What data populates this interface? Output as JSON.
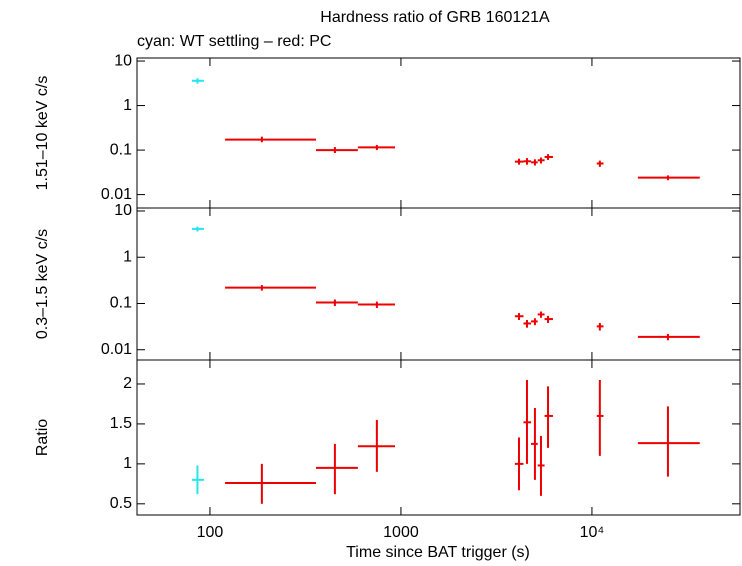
{
  "chart_data": {
    "type": "scatter",
    "title": "Hardness ratio of GRB 160121A",
    "subtitle": "cyan: WT settling – red: PC",
    "xlabel": "Time since BAT trigger (s)",
    "xlog": true,
    "xlim": [
      41.5,
      59600
    ],
    "xticks": [
      100,
      1000,
      {
        "value": 10000,
        "label": "10⁴"
      }
    ],
    "panels": [
      {
        "ylabel": "1.51–10 keV c/s",
        "ylog": true,
        "ylim": [
          0.005,
          11.7
        ],
        "yticks": [
          0.01,
          0.1,
          1,
          10
        ],
        "series": [
          {
            "color": "#22e6f0",
            "x": [
              86
            ],
            "xlow": [
              80.5
            ],
            "xhigh": [
              93
            ],
            "values": [
              3.6
            ],
            "ylow": [
              3.1
            ],
            "yhigh": [
              4.1
            ]
          },
          {
            "color": "#ee0000",
            "x": [
              187,
              451,
              748,
              4150,
              4570,
              5030,
              5410,
              5890,
              11000,
              25000
            ],
            "xlow": [
              120,
              359,
              595,
              3950,
              4380,
              4800,
              5200,
              5650,
              10600,
              17400
            ],
            "xhigh": [
              359,
              595,
              931,
              4380,
              4800,
              5200,
              5650,
              6250,
              11500,
              36700
            ],
            "values": [
              0.172,
              0.1,
              0.115,
              0.055,
              0.056,
              0.053,
              0.059,
              0.07,
              0.05,
              0.024
            ],
            "ylow": [
              0.15,
              0.086,
              0.1,
              0.047,
              0.047,
              0.045,
              0.05,
              0.06,
              0.042,
              0.021
            ],
            "yhigh": [
              0.2,
              0.117,
              0.13,
              0.064,
              0.066,
              0.062,
              0.068,
              0.081,
              0.058,
              0.027
            ]
          }
        ]
      },
      {
        "ylabel": "0.3–1.5 keV c/s",
        "ylog": true,
        "ylim": [
          0.006,
          11.6
        ],
        "yticks": [
          0.01,
          0.1,
          1,
          10
        ],
        "series": [
          {
            "color": "#22e6f0",
            "x": [
              86
            ],
            "xlow": [
              80.5
            ],
            "xhigh": [
              93
            ],
            "values": [
              4.1
            ],
            "ylow": [
              3.6
            ],
            "yhigh": [
              4.6
            ]
          },
          {
            "color": "#ee0000",
            "x": [
              187,
              451,
              748,
              4150,
              4570,
              5030,
              5410,
              5890,
              11000,
              25000
            ],
            "xlow": [
              120,
              359,
              595,
              3950,
              4380,
              4800,
              5200,
              5650,
              10600,
              17400
            ],
            "xhigh": [
              359,
              595,
              931,
              4380,
              4800,
              5200,
              5650,
              6250,
              11500,
              36700
            ],
            "values": [
              0.22,
              0.105,
              0.095,
              0.053,
              0.037,
              0.041,
              0.058,
              0.046,
              0.032,
              0.019
            ],
            "ylow": [
              0.19,
              0.088,
              0.08,
              0.044,
              0.03,
              0.034,
              0.049,
              0.038,
              0.026,
              0.016
            ],
            "yhigh": [
              0.25,
              0.122,
              0.11,
              0.062,
              0.044,
              0.048,
              0.067,
              0.054,
              0.038,
              0.022
            ]
          }
        ]
      },
      {
        "ylabel": "Ratio",
        "ylog": false,
        "ylim": [
          0.36,
          2.3
        ],
        "yticks": [
          0.5,
          1,
          1.5,
          2
        ],
        "series": [
          {
            "color": "#22e6f0",
            "x": [
              86
            ],
            "xlow": [
              80.5
            ],
            "xhigh": [
              93
            ],
            "values": [
              0.8
            ],
            "ylow": [
              0.62
            ],
            "yhigh": [
              0.98
            ]
          },
          {
            "color": "#ee0000",
            "x": [
              187,
              451,
              748,
              4150,
              4570,
              5030,
              5410,
              5890,
              11000,
              25000
            ],
            "xlow": [
              120,
              359,
              595,
              3950,
              4380,
              4800,
              5200,
              5650,
              10600,
              17400
            ],
            "xhigh": [
              359,
              595,
              931,
              4380,
              4800,
              5200,
              5650,
              6250,
              11500,
              36700
            ],
            "values": [
              0.76,
              0.95,
              1.22,
              1.0,
              1.52,
              1.25,
              0.98,
              1.6,
              1.6,
              1.26
            ],
            "ylow": [
              0.5,
              0.62,
              0.9,
              0.67,
              1.0,
              0.8,
              0.6,
              1.2,
              1.1,
              0.84
            ],
            "yhigh": [
              1.0,
              1.25,
              1.55,
              1.33,
              2.05,
              1.7,
              1.35,
              1.97,
              2.05,
              1.72
            ]
          }
        ]
      }
    ]
  }
}
